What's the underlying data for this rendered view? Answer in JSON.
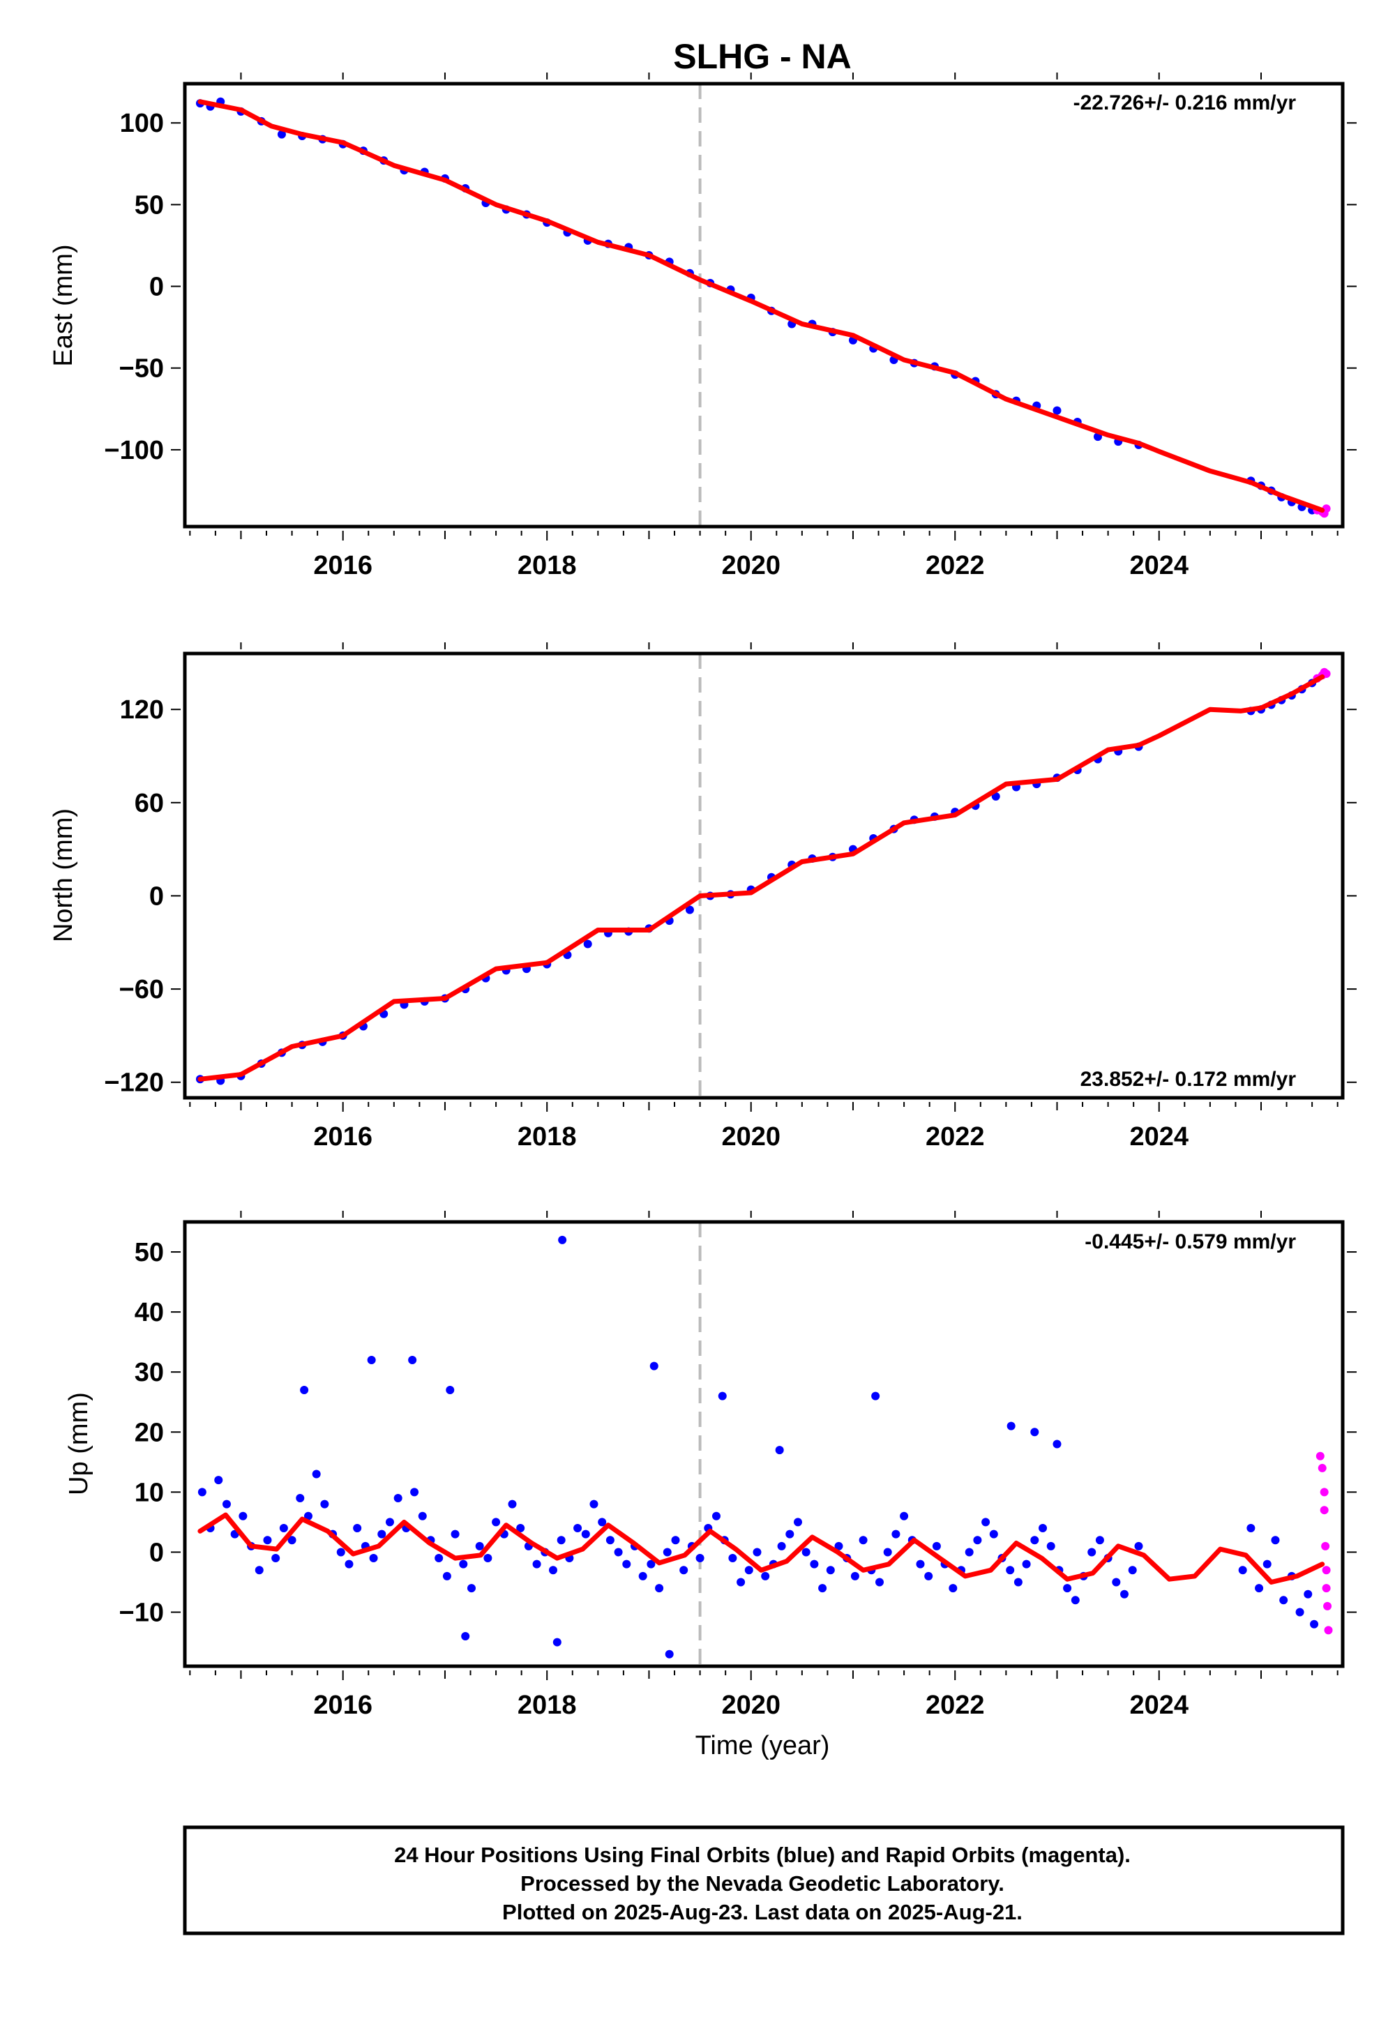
{
  "title": "SLHG - NA",
  "xlabel": "Time (year)",
  "vertical_marker_year": 2019.5,
  "colors": {
    "final_orbits": "#0000ff",
    "rapid_orbits": "#ff00ff",
    "model_fit": "#ff0000",
    "marker_line": "#bbbbbb"
  },
  "footer": {
    "line1": "24 Hour Positions Using Final Orbits (blue) and Rapid Orbits (magenta).",
    "line2": "Processed by the Nevada Geodetic Laboratory.",
    "line3": "Plotted on 2025-Aug-23. Last data on 2025-Aug-21."
  },
  "chart_data": [
    {
      "type": "scatter",
      "ylabel": "East (mm)",
      "rate_label": "-22.726+/- 0.216 mm/yr",
      "rate_position": "top-right",
      "xlim": [
        2014.45,
        2025.8
      ],
      "ylim": [
        -147,
        124
      ],
      "xticks": [
        "2016",
        "2018",
        "2020",
        "2022",
        "2024"
      ],
      "yticks": [
        "100",
        "50",
        "0",
        "−50",
        "−100"
      ],
      "ytick_values": [
        100,
        50,
        0,
        -50,
        -100
      ],
      "fit_curve": {
        "x": [
          2014.6,
          2015.0,
          2015.3,
          2015.6,
          2016.0,
          2016.5,
          2017.0,
          2017.5,
          2018.0,
          2018.5,
          2019.0,
          2019.5,
          2020.0,
          2020.5,
          2021.0,
          2021.5,
          2022.0,
          2022.5,
          2023.0,
          2023.5,
          2023.8,
          2024.0,
          2024.5,
          2024.9,
          2025.2,
          2025.6
        ],
        "y": [
          113,
          108,
          98,
          93,
          88,
          74,
          65,
          50,
          40,
          27,
          19,
          4,
          -9,
          -23,
          -30,
          -45,
          -53,
          -69,
          -80,
          -91,
          -96,
          -101,
          -113,
          -120,
          -128,
          -137
        ]
      },
      "final_orbit_samples": {
        "x": [
          2014.6,
          2014.7,
          2014.8,
          2015.0,
          2015.2,
          2015.4,
          2015.6,
          2015.8,
          2016.0,
          2016.2,
          2016.4,
          2016.6,
          2016.8,
          2017.0,
          2017.2,
          2017.4,
          2017.6,
          2017.8,
          2018.0,
          2018.2,
          2018.4,
          2018.6,
          2018.8,
          2019.0,
          2019.2,
          2019.4,
          2019.6,
          2019.8,
          2020.0,
          2020.2,
          2020.4,
          2020.6,
          2020.8,
          2021.0,
          2021.2,
          2021.4,
          2021.6,
          2021.8,
          2022.0,
          2022.2,
          2022.4,
          2022.6,
          2022.8,
          2023.0,
          2023.2,
          2023.4,
          2023.6,
          2023.8,
          2024.9,
          2025.0,
          2025.1,
          2025.2,
          2025.3,
          2025.4,
          2025.5
        ],
        "y": [
          112,
          110,
          113,
          107,
          101,
          93,
          92,
          90,
          87,
          83,
          77,
          71,
          70,
          66,
          60,
          51,
          47,
          44,
          39,
          33,
          28,
          26,
          24,
          19,
          15,
          8,
          2,
          -2,
          -7,
          -15,
          -23,
          -23,
          -28,
          -33,
          -38,
          -45,
          -47,
          -49,
          -54,
          -58,
          -66,
          -70,
          -73,
          -76,
          -83,
          -92,
          -95,
          -97,
          -119,
          -122,
          -125,
          -129,
          -132,
          -135,
          -137
        ]
      },
      "rapid_orbit_samples": {
        "x": [
          2025.55,
          2025.6,
          2025.62,
          2025.64
        ],
        "y": [
          -137,
          -138,
          -139,
          -136
        ]
      }
    },
    {
      "type": "scatter",
      "ylabel": "North (mm)",
      "rate_label": "23.852+/- 0.172 mm/yr",
      "rate_position": "bottom-right",
      "xlim": [
        2014.45,
        2025.8
      ],
      "ylim": [
        -130,
        156
      ],
      "xticks": [
        "2016",
        "2018",
        "2020",
        "2022",
        "2024"
      ],
      "yticks": [
        "120",
        "60",
        "0",
        "−60",
        "−120"
      ],
      "ytick_values": [
        120,
        60,
        0,
        -60,
        -120
      ],
      "fit_curve": {
        "x": [
          2014.6,
          2015.0,
          2015.5,
          2016.0,
          2016.5,
          2017.0,
          2017.5,
          2018.0,
          2018.5,
          2019.0,
          2019.5,
          2020.0,
          2020.5,
          2021.0,
          2021.5,
          2022.0,
          2022.5,
          2023.0,
          2023.5,
          2023.8,
          2024.0,
          2024.5,
          2024.8,
          2025.0,
          2025.3,
          2025.6
        ],
        "y": [
          -118,
          -115,
          -97,
          -90,
          -68,
          -66,
          -47,
          -43,
          -22,
          -22,
          0,
          2,
          22,
          27,
          47,
          52,
          72,
          75,
          94,
          97,
          103,
          120,
          119,
          121,
          130,
          141
        ]
      },
      "final_orbit_samples": {
        "x": [
          2014.6,
          2014.8,
          2015.0,
          2015.2,
          2015.4,
          2015.6,
          2015.8,
          2016.0,
          2016.2,
          2016.4,
          2016.6,
          2016.8,
          2017.0,
          2017.2,
          2017.4,
          2017.6,
          2017.8,
          2018.0,
          2018.2,
          2018.4,
          2018.6,
          2018.8,
          2019.0,
          2019.2,
          2019.4,
          2019.6,
          2019.8,
          2020.0,
          2020.2,
          2020.4,
          2020.6,
          2020.8,
          2021.0,
          2021.2,
          2021.4,
          2021.6,
          2021.8,
          2022.0,
          2022.2,
          2022.4,
          2022.6,
          2022.8,
          2023.0,
          2023.2,
          2023.4,
          2023.6,
          2023.8,
          2024.9,
          2025.0,
          2025.1,
          2025.2,
          2025.3,
          2025.4,
          2025.5
        ],
        "y": [
          -118,
          -119,
          -116,
          -108,
          -101,
          -96,
          -94,
          -90,
          -84,
          -76,
          -70,
          -68,
          -66,
          -60,
          -53,
          -48,
          -47,
          -44,
          -38,
          -31,
          -24,
          -23,
          -21,
          -16,
          -9,
          0,
          1,
          4,
          12,
          20,
          24,
          25,
          30,
          37,
          43,
          49,
          51,
          54,
          58,
          64,
          70,
          72,
          76,
          81,
          88,
          93,
          96,
          119,
          120,
          123,
          126,
          129,
          133,
          137
        ]
      },
      "rapid_orbit_samples": {
        "x": [
          2025.55,
          2025.6,
          2025.62,
          2025.64
        ],
        "y": [
          140,
          142,
          144,
          143
        ]
      }
    },
    {
      "type": "scatter",
      "ylabel": "Up (mm)",
      "rate_label": "-0.445+/- 0.579 mm/yr",
      "rate_position": "top-right",
      "xlim": [
        2014.45,
        2025.8
      ],
      "ylim": [
        -19,
        55
      ],
      "xticks": [
        "2016",
        "2018",
        "2020",
        "2022",
        "2024"
      ],
      "yticks": [
        "50",
        "40",
        "30",
        "20",
        "10",
        "0",
        "−10"
      ],
      "ytick_values": [
        50,
        40,
        30,
        20,
        10,
        0,
        -10
      ],
      "fit_curve": {
        "x": [
          2014.6,
          2014.85,
          2015.1,
          2015.35,
          2015.6,
          2015.85,
          2016.1,
          2016.35,
          2016.6,
          2016.85,
          2017.1,
          2017.35,
          2017.6,
          2017.85,
          2018.1,
          2018.35,
          2018.6,
          2018.85,
          2019.1,
          2019.35,
          2019.6,
          2019.85,
          2020.1,
          2020.35,
          2020.6,
          2020.85,
          2021.1,
          2021.35,
          2021.6,
          2021.85,
          2022.1,
          2022.35,
          2022.6,
          2022.85,
          2023.1,
          2023.35,
          2023.6,
          2023.85,
          2024.1,
          2024.35,
          2024.6,
          2024.85,
          2025.1,
          2025.35,
          2025.6
        ],
        "y": [
          3.5,
          6.2,
          1.0,
          0.5,
          5.5,
          3.5,
          -0.3,
          1.0,
          5.0,
          1.5,
          -1.0,
          -0.5,
          4.5,
          1.5,
          -1.0,
          0.5,
          4.5,
          1.5,
          -1.8,
          -0.5,
          3.5,
          0.5,
          -3.0,
          -1.5,
          2.5,
          0.0,
          -3.0,
          -2.0,
          2.0,
          -1.0,
          -4.0,
          -3.0,
          1.5,
          -1.0,
          -4.5,
          -3.5,
          1.0,
          -0.5,
          -4.5,
          -4.0,
          0.5,
          -0.5,
          -5.0,
          -4.0,
          -2.0
        ]
      },
      "final_orbit_samples": {
        "x": [
          2014.62,
          2014.7,
          2014.78,
          2014.86,
          2014.94,
          2015.02,
          2015.1,
          2015.18,
          2015.26,
          2015.34,
          2015.42,
          2015.5,
          2015.58,
          2015.66,
          2015.74,
          2015.82,
          2015.9,
          2015.98,
          2016.06,
          2016.14,
          2016.22,
          2016.3,
          2016.38,
          2016.46,
          2016.54,
          2016.62,
          2016.7,
          2016.78,
          2016.86,
          2016.94,
          2017.02,
          2017.1,
          2017.18,
          2017.26,
          2017.34,
          2017.42,
          2017.5,
          2017.58,
          2017.66,
          2017.74,
          2017.82,
          2017.9,
          2017.98,
          2018.06,
          2018.14,
          2018.22,
          2018.3,
          2018.38,
          2018.46,
          2018.54,
          2018.62,
          2018.7,
          2018.78,
          2018.86,
          2018.94,
          2019.02,
          2019.1,
          2019.18,
          2019.26,
          2019.34,
          2019.42,
          2019.5,
          2019.58,
          2019.66,
          2019.74,
          2019.82,
          2019.9,
          2019.98,
          2020.06,
          2020.14,
          2020.22,
          2020.3,
          2020.38,
          2020.46,
          2020.54,
          2020.62,
          2020.7,
          2020.78,
          2020.86,
          2020.94,
          2021.02,
          2021.1,
          2021.18,
          2021.26,
          2021.34,
          2021.42,
          2021.5,
          2021.58,
          2021.66,
          2021.74,
          2021.82,
          2021.9,
          2021.98,
          2022.06,
          2022.14,
          2022.22,
          2022.3,
          2022.38,
          2022.46,
          2022.54,
          2022.62,
          2022.7,
          2022.78,
          2022.86,
          2022.94,
          2023.02,
          2023.1,
          2023.18,
          2023.26,
          2023.34,
          2023.42,
          2023.5,
          2023.58,
          2023.66,
          2023.74,
          2023.8,
          2024.82,
          2024.9,
          2024.98,
          2025.06,
          2025.14,
          2025.22,
          2025.3,
          2025.38,
          2025.46,
          2025.52,
          2016.28,
          2016.68,
          2017.05,
          2015.62,
          2018.15,
          2019.05,
          2019.72,
          2020.28,
          2021.22,
          2022.55,
          2022.78,
          2023.0,
          2018.1,
          2019.2,
          2017.2
        ],
        "y": [
          10,
          4,
          12,
          8,
          3,
          6,
          1,
          -3,
          2,
          -1,
          4,
          2,
          9,
          6,
          13,
          8,
          3,
          0,
          -2,
          4,
          1,
          -1,
          3,
          5,
          9,
          4,
          10,
          6,
          2,
          -1,
          -4,
          3,
          -2,
          -6,
          1,
          -1,
          5,
          3,
          8,
          4,
          1,
          -2,
          0,
          -3,
          2,
          -1,
          4,
          3,
          8,
          5,
          2,
          0,
          -2,
          1,
          -4,
          -2,
          -6,
          0,
          2,
          -3,
          1,
          -1,
          4,
          6,
          2,
          -1,
          -5,
          -3,
          0,
          -4,
          -2,
          1,
          3,
          5,
          0,
          -2,
          -6,
          -3,
          1,
          -1,
          -4,
          2,
          -3,
          -5,
          0,
          3,
          6,
          2,
          -2,
          -4,
          1,
          -2,
          -6,
          -3,
          0,
          2,
          5,
          3,
          -1,
          -3,
          -5,
          -2,
          2,
          4,
          1,
          -3,
          -6,
          -8,
          -4,
          0,
          2,
          -1,
          -5,
          -7,
          -3,
          1,
          -3,
          4,
          -6,
          -2,
          2,
          -8,
          -4,
          -10,
          -7,
          -12,
          32,
          32,
          27,
          27,
          52,
          31,
          26,
          17,
          26,
          21,
          20,
          18,
          -15,
          -17,
          -14
        ]
      },
      "rapid_orbit_samples": {
        "x": [
          2025.58,
          2025.6,
          2025.62,
          2025.62,
          2025.63,
          2025.64,
          2025.64,
          2025.65,
          2025.66
        ],
        "y": [
          16,
          14,
          10,
          7,
          1,
          -3,
          -6,
          -9,
          -13
        ]
      }
    }
  ]
}
